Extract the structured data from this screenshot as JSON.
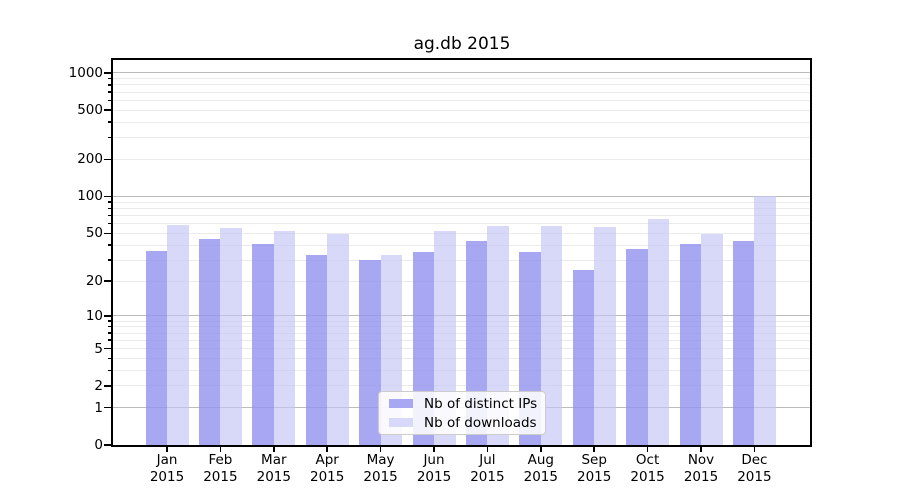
{
  "chart_data": {
    "type": "bar",
    "title": "ag.db 2015",
    "categories": [
      "Jan",
      "Feb",
      "Mar",
      "Apr",
      "May",
      "Jun",
      "Jul",
      "Aug",
      "Sep",
      "Oct",
      "Nov",
      "Dec"
    ],
    "category_year": "2015",
    "series": [
      {
        "key": "distinct-ips",
        "name": "Nb of distinct IPs",
        "color": "#a8a8f2",
        "color_rgba": "rgba(146,146,239,0.8)",
        "values": [
          36,
          45,
          41,
          33,
          30,
          35,
          43,
          35,
          25,
          37,
          41,
          43
        ]
      },
      {
        "key": "downloads",
        "name": "Nb of downloads",
        "color": "#d8d8f9",
        "color_rgba": "rgba(195,195,246,0.65)",
        "values": [
          59,
          55,
          52,
          49,
          33,
          52,
          57,
          57,
          56,
          66,
          49,
          100
        ]
      }
    ],
    "y_axis": {
      "scale": "log1p",
      "ticks": [
        0,
        1,
        2,
        5,
        10,
        20,
        50,
        100,
        200,
        500,
        1000
      ],
      "range": [
        0,
        1270
      ]
    },
    "xlabel": "",
    "ylabel": "",
    "grid": true,
    "legend_position": "lower center"
  },
  "colors": {
    "major_grid": "#bcbcbc",
    "minor_grid": "#eaeaea",
    "spine": "#000000"
  }
}
